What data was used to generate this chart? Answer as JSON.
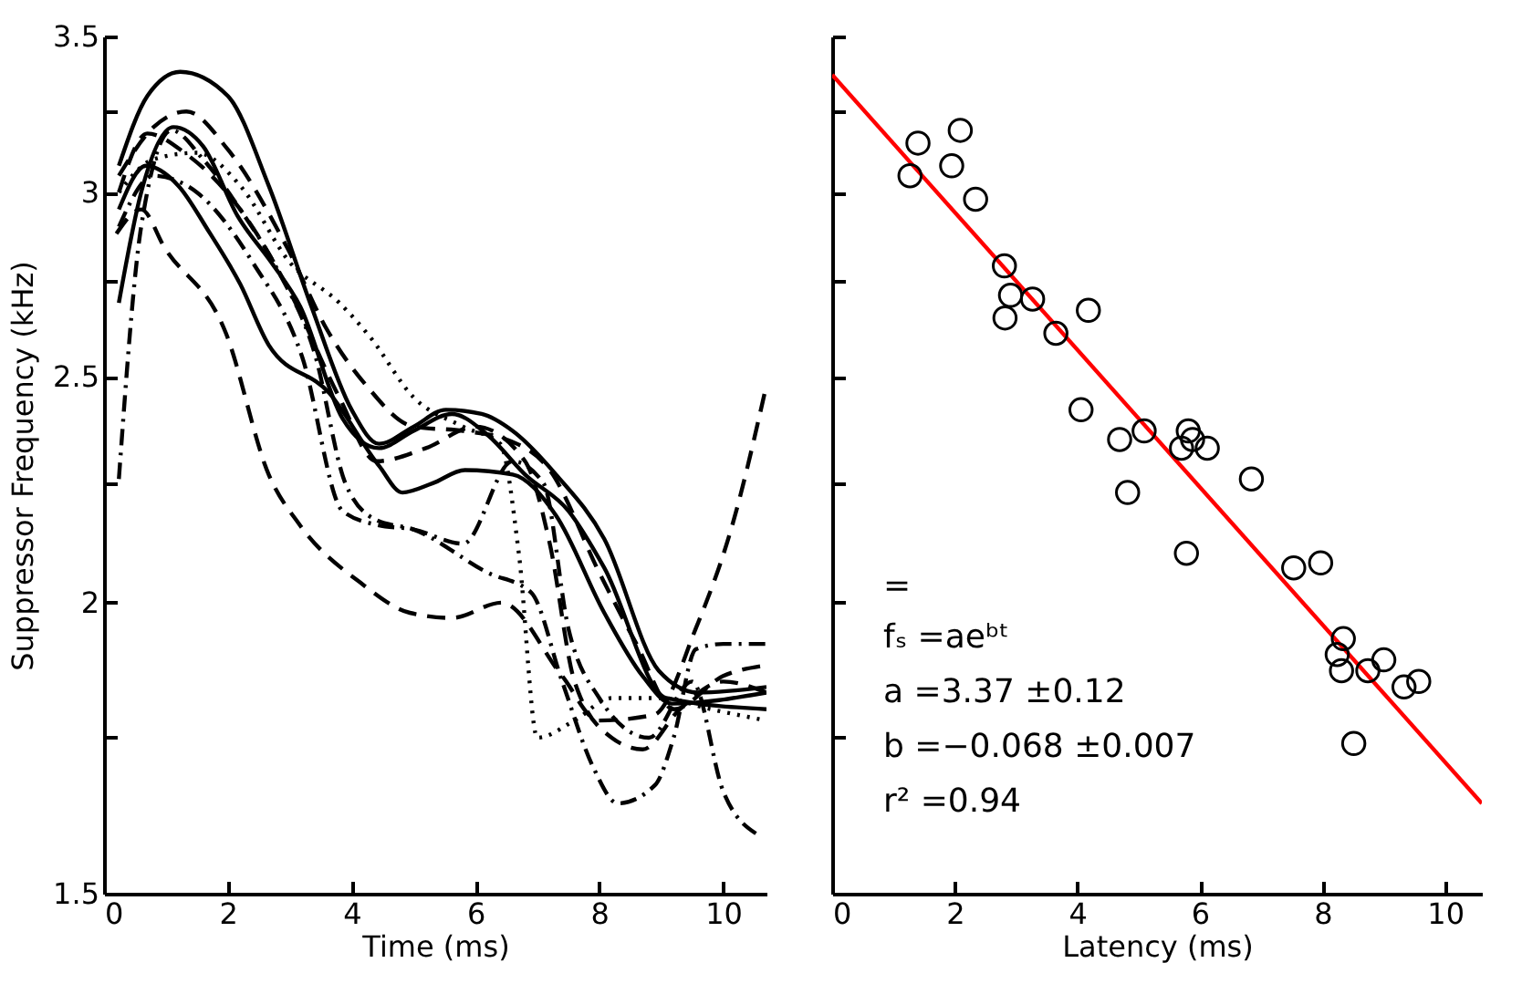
{
  "chart_data": [
    {
      "type": "line",
      "xlabel": "Time (ms)",
      "ylabel": "Suppressor Frequency (kHz)",
      "log": "y",
      "xlim": [
        0,
        10.7
      ],
      "ylim": [
        1.5,
        3.5
      ],
      "xticks": [
        0,
        2,
        4,
        6,
        8,
        10
      ],
      "yticks": [
        1.5,
        {
          "value": 1.75,
          "label": null
        },
        2,
        {
          "value": 2.25,
          "label": null
        },
        2.5,
        {
          "value": 2.75,
          "label": null
        },
        3,
        {
          "value": 3.25,
          "label": null
        },
        3.5
      ],
      "series": [
        {
          "color": "#000000",
          "line_style": "solid",
          "x": [
            0.24,
            0.7,
            1.23,
            2,
            2.66,
            3.35,
            4.0,
            4.44,
            5.0,
            5.52,
            6.1,
            6.6,
            7.3,
            8.08,
            8.96,
            9.6,
            10.7
          ],
          "values": [
            3.08,
            3.3,
            3.38,
            3.3,
            3.02,
            2.68,
            2.42,
            2.34,
            2.38,
            2.42,
            2.41,
            2.37,
            2.27,
            2.13,
            1.87,
            1.83,
            1.84
          ]
        },
        {
          "color": "#000000",
          "line_style": "solid",
          "x": [
            0.24,
            0.68,
            1.2,
            1.68,
            2.2,
            2.66,
            3.64,
            4.44,
            4.82,
            5.3,
            5.83,
            6.6,
            7.3,
            8.08,
            8.7,
            9.17,
            10.7
          ],
          "values": [
            2.95,
            3.08,
            3.02,
            2.89,
            2.74,
            2.58,
            2.46,
            2.29,
            2.23,
            2.25,
            2.28,
            2.27,
            2.18,
            1.98,
            1.86,
            1.81,
            1.83
          ]
        },
        {
          "color": "#000000",
          "line_style": "solid",
          "x": [
            0.24,
            0.6,
            1.12,
            1.6,
            2.16,
            2.7,
            3.17,
            3.85,
            4.44,
            5.0,
            5.62,
            6.2,
            6.8,
            7.5,
            8.08,
            9.08,
            10.7
          ],
          "values": [
            2.69,
            3.0,
            3.2,
            3.14,
            2.93,
            2.8,
            2.68,
            2.4,
            2.33,
            2.37,
            2.41,
            2.36,
            2.27,
            2.19,
            2.07,
            1.82,
            1.8
          ]
        },
        {
          "color": "#000000",
          "line_style": "dashed",
          "x": [
            0.2,
            0.6,
            0.98,
            1.97,
            2.66,
            3.16,
            4.14,
            4.94,
            5.62,
            6.42,
            7.4,
            7.99,
            8.88,
            9.56,
            10.15,
            10.7
          ],
          "values": [
            2.88,
            2.95,
            2.84,
            2.61,
            2.27,
            2.16,
            2.04,
            1.98,
            1.97,
            2.0,
            1.86,
            1.78,
            1.79,
            1.95,
            2.16,
            2.48
          ]
        },
        {
          "color": "#000000",
          "line_style": "dashed",
          "x": [
            0.24,
            0.8,
            1.33,
            2.0,
            2.96,
            3.6,
            4.23,
            5.0,
            5.8,
            6.5,
            7.2,
            8.0,
            8.6,
            9.2,
            10.0,
            10.7
          ],
          "values": [
            3.05,
            3.2,
            3.25,
            3.13,
            2.84,
            2.62,
            2.48,
            2.38,
            2.37,
            2.35,
            2.28,
            2.06,
            1.92,
            1.8,
            1.86,
            1.88
          ]
        },
        {
          "color": "#000000",
          "line_style": "dotted",
          "x": [
            0.24,
            0.8,
            1.5,
            2.2,
            3.0,
            3.8,
            4.3,
            5.0,
            5.8,
            6.4,
            6.7,
            7.0,
            7.6,
            8.2,
            9.0,
            9.8,
            10.7
          ],
          "values": [
            3.0,
            3.1,
            3.12,
            3.02,
            2.8,
            2.69,
            2.6,
            2.45,
            2.38,
            2.34,
            2.1,
            1.75,
            1.78,
            1.82,
            1.82,
            1.8,
            1.78
          ]
        },
        {
          "color": "#000000",
          "line_style": "dashdot",
          "x": [
            0.24,
            0.6,
            1.09,
            1.6,
            2.2,
            2.8,
            3.4,
            3.9,
            4.4,
            5.0,
            6.2,
            6.9,
            7.4,
            7.9,
            8.3,
            8.9,
            9.2,
            9.56,
            10.0,
            10.7
          ],
          "values": [
            2.26,
            2.9,
            3.19,
            3.1,
            2.95,
            2.78,
            2.56,
            2.25,
            2.17,
            2.15,
            2.06,
            2.02,
            1.85,
            1.7,
            1.64,
            1.67,
            1.75,
            1.91,
            1.92,
            1.92
          ]
        },
        {
          "color": "#000000",
          "line_style": "dashdot",
          "x": [
            0.24,
            0.8,
            1.5,
            2.4,
            3.2,
            3.85,
            4.4,
            5.0,
            5.8,
            6.6,
            7.1,
            7.5,
            8.0,
            8.8,
            9.5,
            10.0,
            10.56
          ],
          "values": [
            2.9,
            3.05,
            3.0,
            2.8,
            2.55,
            2.19,
            2.16,
            2.15,
            2.12,
            2.3,
            2.25,
            1.95,
            1.82,
            1.75,
            1.85,
            1.66,
            1.59
          ]
        },
        {
          "color": "#000000",
          "line_style": "dashed",
          "x": [
            0.24,
            0.7,
            1.3,
            2.2,
            3.0,
            3.8,
            4.4,
            5.2,
            6.0,
            6.8,
            7.2,
            7.6,
            8.2,
            8.7,
            9.3,
            10.0,
            10.7
          ],
          "values": [
            3.0,
            3.18,
            3.12,
            2.95,
            2.72,
            2.45,
            2.3,
            2.33,
            2.38,
            2.3,
            2.12,
            1.85,
            1.75,
            1.73,
            1.8,
            1.85,
            1.83
          ]
        }
      ]
    },
    {
      "type": "scatter",
      "xlabel": "Latency (ms)",
      "log": "y",
      "xlim": [
        0,
        10.6
      ],
      "ylim": [
        1.5,
        3.5
      ],
      "xticks": [
        0,
        2,
        4,
        6,
        8,
        10
      ],
      "yticks": [
        {
          "value": 1.5,
          "label": null
        },
        {
          "value": 1.75,
          "label": null
        },
        {
          "value": 2,
          "label": null
        },
        {
          "value": 2.25,
          "label": null
        },
        {
          "value": 2.5,
          "label": null
        },
        {
          "value": 2.75,
          "label": null
        },
        {
          "value": 3,
          "label": null
        },
        {
          "value": 3.25,
          "label": null
        },
        {
          "value": 3.5,
          "label": null
        }
      ],
      "tick_labels": "x",
      "annotations": [
        "=",
        "fₛ =aeᵇᵗ",
        "a =3.37 ±0.12",
        "b =−0.068 ±0.007",
        "r² =0.94"
      ],
      "series": [
        {
          "color": "#000000",
          "marker": "circle",
          "x": [
            1.4,
            1.27,
            2.09,
            1.95,
            2.34,
            2.81,
            2.91,
            3.27,
            2.82,
            3.65,
            4.18,
            4.06,
            4.69,
            5.09,
            5.81,
            5.88,
            5.7,
            6.12,
            6.84,
            4.82,
            5.78,
            7.53,
            7.97,
            8.34,
            8.24,
            8.31,
            8.74,
            9.0,
            9.33,
            9.57,
            8.51
          ],
          "values": [
            3.15,
            3.05,
            3.19,
            3.08,
            2.98,
            2.79,
            2.71,
            2.7,
            2.65,
            2.61,
            2.67,
            2.42,
            2.35,
            2.37,
            2.37,
            2.35,
            2.33,
            2.33,
            2.26,
            2.23,
            2.1,
            2.07,
            2.08,
            1.93,
            1.9,
            1.87,
            1.87,
            1.89,
            1.84,
            1.85,
            1.74
          ]
        },
        {
          "type": "line",
          "color": "#ff0000",
          "line_style": "solid",
          "x": [
            0,
            10.6
          ],
          "values": [
            3.37,
            1.64
          ]
        }
      ]
    }
  ]
}
